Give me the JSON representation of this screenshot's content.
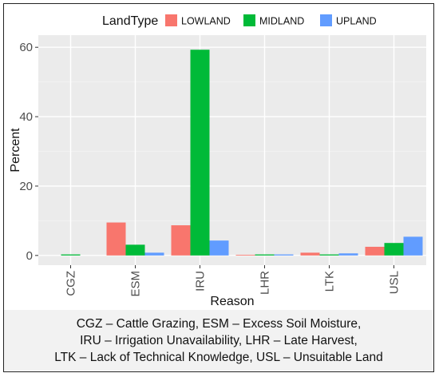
{
  "chart_data": {
    "type": "bar",
    "legend_title": "LandType",
    "legend_position": "top",
    "xlabel": "Reason",
    "ylabel": "Percent",
    "categories": [
      "CGZ",
      "ESM",
      "IRU",
      "LHR",
      "LTK",
      "USL"
    ],
    "series": [
      {
        "name": "LOWLAND",
        "color": "#F8766D",
        "values": [
          null,
          9.5,
          8.7,
          0.2,
          0.8,
          2.5
        ]
      },
      {
        "name": "MIDLAND",
        "color": "#00BA38",
        "values": [
          0.3,
          3.1,
          59.3,
          0.3,
          0.3,
          3.6
        ]
      },
      {
        "name": "UPLAND",
        "color": "#619CFF",
        "values": [
          null,
          0.8,
          4.3,
          0.3,
          0.6,
          5.4
        ]
      }
    ],
    "yticks": [
      0,
      20,
      40,
      60
    ],
    "ylim": [
      -2.8,
      63.5
    ],
    "grid": true,
    "panel_background": "#EBEBEB",
    "caption_lines": [
      "CGZ – Cattle Grazing, ESM – Excess Soil Moisture,",
      "IRU – Irrigation Unavailability, LHR – Late Harvest,",
      "LTK – Lack of Technical Knowledge, USL – Unsuitable Land"
    ]
  }
}
